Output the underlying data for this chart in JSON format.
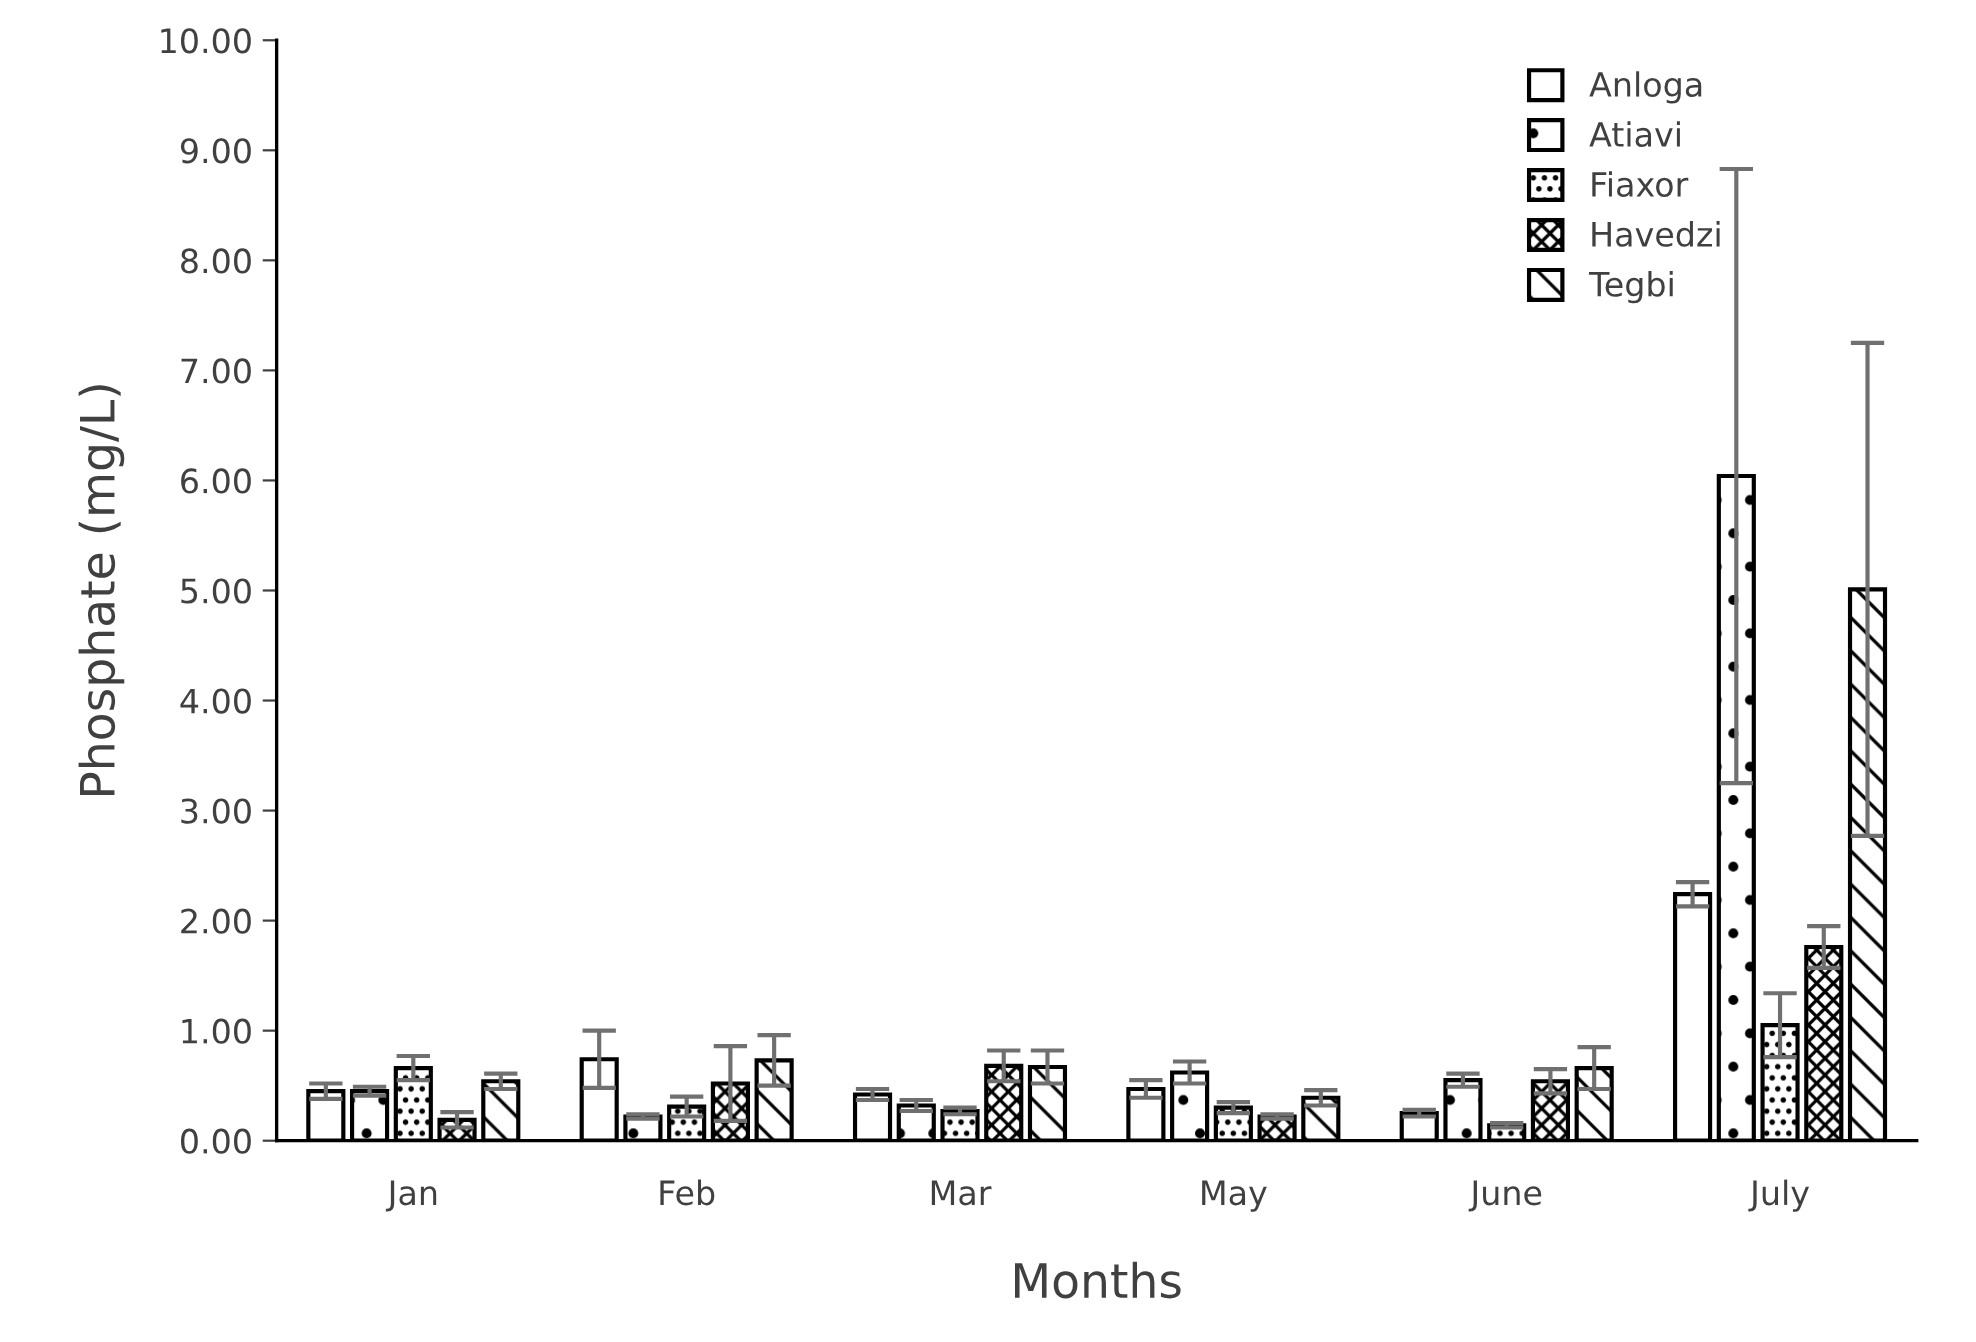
{
  "chart_data": {
    "type": "bar",
    "xlabel": "Months",
    "ylabel": "Phosphate (mg/L)",
    "categories": [
      "Jan",
      "Feb",
      "Mar",
      "May",
      "June",
      "July"
    ],
    "series": [
      {
        "name": "Anloga",
        "color": "#ffffff",
        "values": [
          0.45,
          0.74,
          0.42,
          0.47,
          0.25,
          2.24
        ],
        "errors": [
          0.07,
          0.26,
          0.05,
          0.08,
          0.03,
          0.11
        ]
      },
      {
        "name": "Atiavi",
        "color": "#000000",
        "values": [
          0.45,
          0.22,
          0.32,
          0.62,
          0.55,
          6.04
        ],
        "errors": [
          0.04,
          0.02,
          0.05,
          0.1,
          0.06,
          2.79
        ]
      },
      {
        "name": "Fiaxor",
        "color": "#000000",
        "values": [
          0.66,
          0.31,
          0.27,
          0.3,
          0.14,
          1.05
        ],
        "errors": [
          0.11,
          0.09,
          0.03,
          0.05,
          0.02,
          0.29
        ]
      },
      {
        "name": "Havedzi",
        "color": "#000000",
        "values": [
          0.19,
          0.52,
          0.68,
          0.22,
          0.54,
          1.76
        ],
        "errors": [
          0.07,
          0.34,
          0.14,
          0.02,
          0.11,
          0.19
        ]
      },
      {
        "name": "Tegbi",
        "color": "#000000",
        "values": [
          0.54,
          0.73,
          0.67,
          0.39,
          0.66,
          5.01
        ],
        "errors": [
          0.07,
          0.23,
          0.15,
          0.07,
          0.19,
          2.24
        ]
      }
    ],
    "ylim": [
      0,
      10
    ],
    "yticks": [
      {
        "value": 0,
        "label": "0.00"
      },
      {
        "value": 1,
        "label": "1.00"
      },
      {
        "value": 2,
        "label": "2.00"
      },
      {
        "value": 3,
        "label": "3.00"
      },
      {
        "value": 4,
        "label": "4.00"
      },
      {
        "value": 5,
        "label": "5.00"
      },
      {
        "value": 6,
        "label": "6.00"
      },
      {
        "value": 7,
        "label": "7.00"
      },
      {
        "value": 8,
        "label": "8.00"
      },
      {
        "value": 9,
        "label": "9.00"
      },
      {
        "value": 10,
        "label": "10.00"
      }
    ],
    "grid": false,
    "legend": "top right"
  }
}
